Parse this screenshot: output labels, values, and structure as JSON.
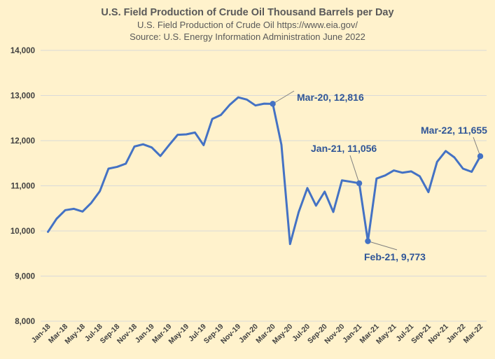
{
  "chart_data": {
    "type": "line",
    "title": "U.S. Field Production of Crude Oil Thousand Barrels per Day",
    "subtitle_1": "U.S. Field Production of Crude Oil https://www.eia.gov/",
    "subtitle_2": "Source: U.S. Energy Information Administration June 2022",
    "xlabel": "",
    "ylabel": "",
    "ylim": [
      8000,
      14000
    ],
    "y_ticks": [
      8000,
      9000,
      10000,
      11000,
      12000,
      13000,
      14000
    ],
    "y_tick_labels": [
      "8,000",
      "9,000",
      "10,000",
      "11,000",
      "12,000",
      "13,000",
      "14,000"
    ],
    "grid": "horizontal",
    "x_tick_labels": [
      "Jan-18",
      "Mar-18",
      "May-18",
      "Jul-18",
      "Sep-18",
      "Nov-18",
      "Jan-19",
      "Mar-19",
      "May-19",
      "Jul-19",
      "Sep-19",
      "Nov-19",
      "Jan-20",
      "Mar-20",
      "May-20",
      "Jul-20",
      "Sep-20",
      "Nov-20",
      "Jan-21",
      "Mar-21",
      "May-21",
      "Jul-21",
      "Sep-21",
      "Nov-21",
      "Jan-22",
      "Mar-22"
    ],
    "categories": [
      "Jan-18",
      "Feb-18",
      "Mar-18",
      "Apr-18",
      "May-18",
      "Jun-18",
      "Jul-18",
      "Aug-18",
      "Sep-18",
      "Oct-18",
      "Nov-18",
      "Dec-18",
      "Jan-19",
      "Feb-19",
      "Mar-19",
      "Apr-19",
      "May-19",
      "Jun-19",
      "Jul-19",
      "Aug-19",
      "Sep-19",
      "Oct-19",
      "Nov-19",
      "Dec-19",
      "Jan-20",
      "Feb-20",
      "Mar-20",
      "Apr-20",
      "May-20",
      "Jun-20",
      "Jul-20",
      "Aug-20",
      "Sep-20",
      "Oct-20",
      "Nov-20",
      "Dec-20",
      "Jan-21",
      "Feb-21",
      "Mar-21",
      "Apr-21",
      "May-21",
      "Jun-21",
      "Jul-21",
      "Aug-21",
      "Sep-21",
      "Oct-21",
      "Nov-21",
      "Dec-21",
      "Jan-22",
      "Feb-22",
      "Mar-22"
    ],
    "series": [
      {
        "values": [
          9980,
          10270,
          10460,
          10490,
          10430,
          10620,
          10880,
          11380,
          11420,
          11490,
          11870,
          11920,
          11850,
          11660,
          11900,
          12130,
          12140,
          12180,
          11900,
          12480,
          12570,
          12790,
          12960,
          12910,
          12780,
          12820,
          12816,
          11910,
          9710,
          10420,
          10950,
          10560,
          10870,
          10420,
          11120,
          11090,
          11056,
          9773,
          11160,
          11230,
          11340,
          11290,
          11320,
          11210,
          10860,
          11530,
          11770,
          11630,
          11380,
          11310,
          11655
        ],
        "color": "#4472C4"
      }
    ],
    "annotations": [
      {
        "category": "Mar-20",
        "value": 12816,
        "label": "Mar-20,  12,816"
      },
      {
        "category": "Jan-21",
        "value": 11056,
        "label": "Jan-21,  11,056"
      },
      {
        "category": "Feb-21",
        "value": 9773,
        "label": "Feb-21,  9,773"
      },
      {
        "category": "Mar-22",
        "value": 11655,
        "label": "Mar-22,  11,655"
      }
    ],
    "colors": {
      "background": "#FFF2CC",
      "line": "#4472C4",
      "title": "#595959",
      "label": "#2F5597",
      "grid": "#D9D9D9",
      "tick_text": "#404040"
    }
  }
}
